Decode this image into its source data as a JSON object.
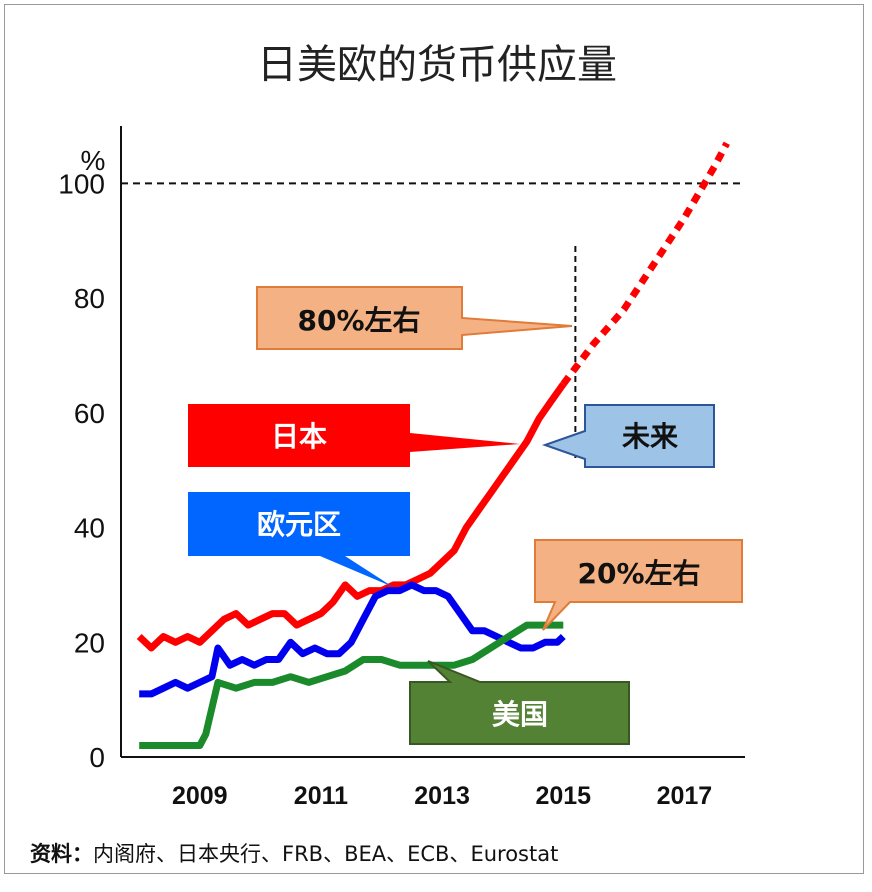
{
  "title": "日美欧的货币供应量",
  "y_unit": "%",
  "source_label": "资料：",
  "source_text": "内阁府、日本央行、FRB、BEA、ECB、Eurostat",
  "callouts": {
    "japan": "日本",
    "eurozone": "欧元区",
    "usa": "美国",
    "future": "未来",
    "japan_forecast": "80%左右",
    "usa_forecast": "20%左右"
  },
  "colors": {
    "japan": "#ff0000",
    "eurozone": "#0000ee",
    "usa": "#1a8a2a",
    "callout_orange": "#f4b183",
    "callout_blue": "#9dc3e6",
    "callout_red": "#ff0000",
    "callout_blue_box": "#0066ff",
    "callout_green": "#548235"
  },
  "chart_data": {
    "type": "line",
    "title": "日美欧的货币供应量",
    "ylabel": "%",
    "ylim": [
      0,
      110
    ],
    "xlim": [
      2007.7,
      2018
    ],
    "yticks": [
      0,
      20,
      40,
      60,
      80,
      100
    ],
    "xticks": [
      "2009",
      "2011",
      "2013",
      "2015",
      "2017"
    ],
    "reference_line": {
      "y": 100,
      "style": "dashed"
    },
    "future_divider": {
      "x": 2015.2,
      "style": "dashed"
    },
    "series": [
      {
        "name": "日本",
        "x": [
          2008.0,
          2008.2,
          2008.4,
          2008.6,
          2008.8,
          2009.0,
          2009.2,
          2009.4,
          2009.6,
          2009.8,
          2010.0,
          2010.2,
          2010.4,
          2010.6,
          2010.8,
          2011.0,
          2011.2,
          2011.4,
          2011.6,
          2011.8,
          2012.0,
          2012.2,
          2012.4,
          2012.6,
          2012.8,
          2013.0,
          2013.2,
          2013.4,
          2013.6,
          2013.8,
          2014.0,
          2014.2,
          2014.4,
          2014.6,
          2014.8,
          2015.0
        ],
        "values": [
          21,
          19,
          21,
          20,
          21,
          20,
          22,
          24,
          25,
          23,
          24,
          25,
          25,
          23,
          24,
          25,
          27,
          30,
          28,
          29,
          29,
          30,
          30,
          31,
          32,
          34,
          36,
          40,
          43,
          46,
          49,
          52,
          55,
          59,
          62,
          65
        ]
      },
      {
        "name": "日本 (forecast)",
        "x": [
          2015.0,
          2015.5,
          2016.0,
          2016.5,
          2017.0,
          2017.5,
          2017.7
        ],
        "values": [
          65,
          72,
          78,
          86,
          94,
          103,
          107
        ]
      },
      {
        "name": "欧元区",
        "x": [
          2008.0,
          2008.2,
          2008.4,
          2008.6,
          2008.8,
          2009.0,
          2009.2,
          2009.3,
          2009.5,
          2009.7,
          2009.9,
          2010.1,
          2010.3,
          2010.5,
          2010.7,
          2010.9,
          2011.1,
          2011.3,
          2011.5,
          2011.7,
          2011.9,
          2012.1,
          2012.3,
          2012.5,
          2012.7,
          2012.9,
          2013.1,
          2013.3,
          2013.5,
          2013.7,
          2013.9,
          2014.1,
          2014.3,
          2014.5,
          2014.7,
          2014.9,
          2015.0
        ],
        "values": [
          11,
          11,
          12,
          13,
          12,
          13,
          14,
          19,
          16,
          17,
          16,
          17,
          17,
          20,
          18,
          19,
          18,
          18,
          20,
          24,
          28,
          29,
          29,
          30,
          29,
          29,
          28,
          25,
          22,
          22,
          21,
          20,
          19,
          19,
          20,
          20,
          21
        ]
      },
      {
        "name": "美国",
        "x": [
          2008.0,
          2008.3,
          2008.6,
          2008.9,
          2009.0,
          2009.1,
          2009.3,
          2009.6,
          2009.9,
          2010.2,
          2010.5,
          2010.8,
          2011.1,
          2011.4,
          2011.7,
          2012.0,
          2012.3,
          2012.6,
          2012.9,
          2013.2,
          2013.5,
          2013.8,
          2014.1,
          2014.4,
          2014.7,
          2015.0
        ],
        "values": [
          2,
          2,
          2,
          2,
          2,
          4,
          13,
          12,
          13,
          13,
          14,
          13,
          14,
          15,
          17,
          17,
          16,
          16,
          16,
          16,
          17,
          19,
          21,
          23,
          23,
          23
        ]
      }
    ]
  }
}
